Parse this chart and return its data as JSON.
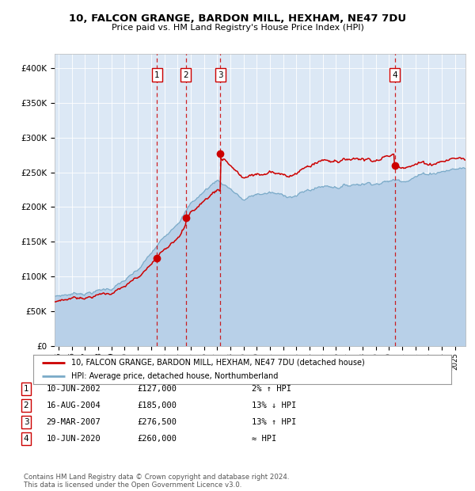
{
  "title1": "10, FALCON GRANGE, BARDON MILL, HEXHAM, NE47 7DU",
  "title2": "Price paid vs. HM Land Registry's House Price Index (HPI)",
  "legend_line1": "10, FALCON GRANGE, BARDON MILL, HEXHAM, NE47 7DU (detached house)",
  "legend_line2": "HPI: Average price, detached house, Northumberland",
  "footer1": "Contains HM Land Registry data © Crown copyright and database right 2024.",
  "footer2": "This data is licensed under the Open Government Licence v3.0.",
  "transactions": [
    {
      "num": 1,
      "date": "10-JUN-2002",
      "price": 127000,
      "rel": "2% ↑ HPI",
      "year": 2002.44
    },
    {
      "num": 2,
      "date": "16-AUG-2004",
      "price": 185000,
      "rel": "13% ↓ HPI",
      "year": 2004.62
    },
    {
      "num": 3,
      "date": "29-MAR-2007",
      "price": 276500,
      "rel": "13% ↑ HPI",
      "year": 2007.24
    },
    {
      "num": 4,
      "date": "10-JUN-2020",
      "price": 260000,
      "rel": "≈ HPI",
      "year": 2020.44
    }
  ],
  "hpi_color": "#b8d0e8",
  "hpi_line_color": "#7aaac8",
  "price_color": "#cc0000",
  "dot_color": "#cc0000",
  "dashed_color": "#cc0000",
  "background_color": "#ffffff",
  "plot_bg": "#dce8f5",
  "grid_color": "#ffffff",
  "ylim": [
    0,
    420000
  ],
  "xlim_start": 1994.7,
  "xlim_end": 2025.8,
  "yticks": [
    0,
    50000,
    100000,
    150000,
    200000,
    250000,
    300000,
    350000,
    400000
  ],
  "ylabels": [
    "£0",
    "£50K",
    "£100K",
    "£150K",
    "£200K",
    "£250K",
    "£300K",
    "£350K",
    "£400K"
  ]
}
